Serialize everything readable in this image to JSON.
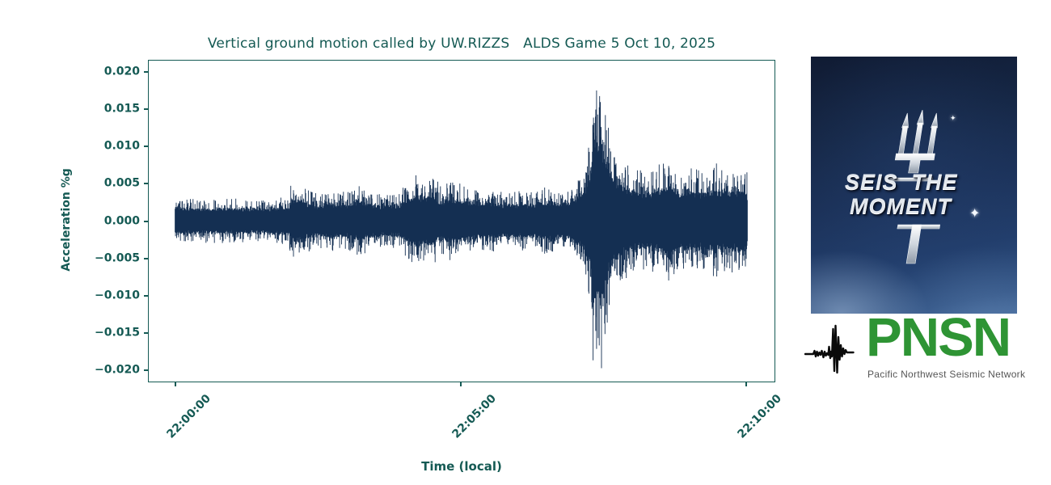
{
  "chart_data": {
    "type": "line",
    "subtype": "seismogram",
    "title": "Vertical ground motion called by UW.RIZZS   ALDS Game 5 Oct 10, 2025",
    "xlabel": "Time (local)",
    "ylabel": "Acceleration %g",
    "x_ticks": [
      "22:00:00",
      "22:05:00",
      "22:10:00"
    ],
    "x_tick_seconds": [
      0,
      300,
      600
    ],
    "y_ticks": [
      "0.020",
      "0.015",
      "0.010",
      "0.005",
      "0.000",
      "−0.005",
      "−0.010",
      "−0.015",
      "−0.020"
    ],
    "y_tick_values": [
      0.02,
      0.015,
      0.01,
      0.005,
      0.0,
      -0.005,
      -0.01,
      -0.015,
      -0.02
    ],
    "ylim": [
      -0.0216,
      0.0216
    ],
    "xlim_seconds": [
      -29,
      631
    ],
    "duration_seconds": 602,
    "peak_amplitude_pct_g": 0.0205,
    "peak_time_local": "22:07:20",
    "grid": false,
    "legend": false,
    "line_color": "#142f52",
    "axis_color": "#155a54",
    "samples": 1500,
    "seed": 20251010,
    "envelope_sec_amp": [
      [
        0,
        0.003
      ],
      [
        60,
        0.003
      ],
      [
        90,
        0.0028
      ],
      [
        112,
        0.0032
      ],
      [
        120,
        0.0034
      ],
      [
        122,
        0.0055
      ],
      [
        130,
        0.005
      ],
      [
        140,
        0.0042
      ],
      [
        150,
        0.0036
      ],
      [
        165,
        0.0042
      ],
      [
        180,
        0.0038
      ],
      [
        195,
        0.0048
      ],
      [
        205,
        0.004
      ],
      [
        215,
        0.0036
      ],
      [
        235,
        0.0038
      ],
      [
        255,
        0.0065
      ],
      [
        262,
        0.0055
      ],
      [
        270,
        0.006
      ],
      [
        280,
        0.0048
      ],
      [
        290,
        0.0055
      ],
      [
        300,
        0.005
      ],
      [
        310,
        0.0045
      ],
      [
        320,
        0.004
      ],
      [
        335,
        0.0042
      ],
      [
        350,
        0.0038
      ],
      [
        365,
        0.004
      ],
      [
        380,
        0.004
      ],
      [
        395,
        0.0048
      ],
      [
        405,
        0.0042
      ],
      [
        415,
        0.0045
      ],
      [
        422,
        0.0055
      ],
      [
        430,
        0.007
      ],
      [
        436,
        0.011
      ],
      [
        440,
        0.02
      ],
      [
        444,
        0.019
      ],
      [
        448,
        0.0205
      ],
      [
        452,
        0.016
      ],
      [
        457,
        0.012
      ],
      [
        463,
        0.0095
      ],
      [
        470,
        0.0082
      ],
      [
        480,
        0.0072
      ],
      [
        492,
        0.0068
      ],
      [
        505,
        0.0072
      ],
      [
        520,
        0.0085
      ],
      [
        530,
        0.0068
      ],
      [
        545,
        0.0072
      ],
      [
        558,
        0.0068
      ],
      [
        568,
        0.0078
      ],
      [
        580,
        0.0068
      ],
      [
        592,
        0.0072
      ],
      [
        602,
        0.0065
      ]
    ]
  },
  "poster": {
    "line1": "SEIS  THE",
    "line2": "MOMENT",
    "sparkle_glyph": "✦",
    "background_navy": "#152644",
    "trident_silver": "#d9dee5"
  },
  "pnsn": {
    "acronym": "PNSN",
    "subtitle": "Pacific Northwest Seismic Network",
    "green": "#2E9434",
    "squiggle_color": "#0a0a0a"
  }
}
